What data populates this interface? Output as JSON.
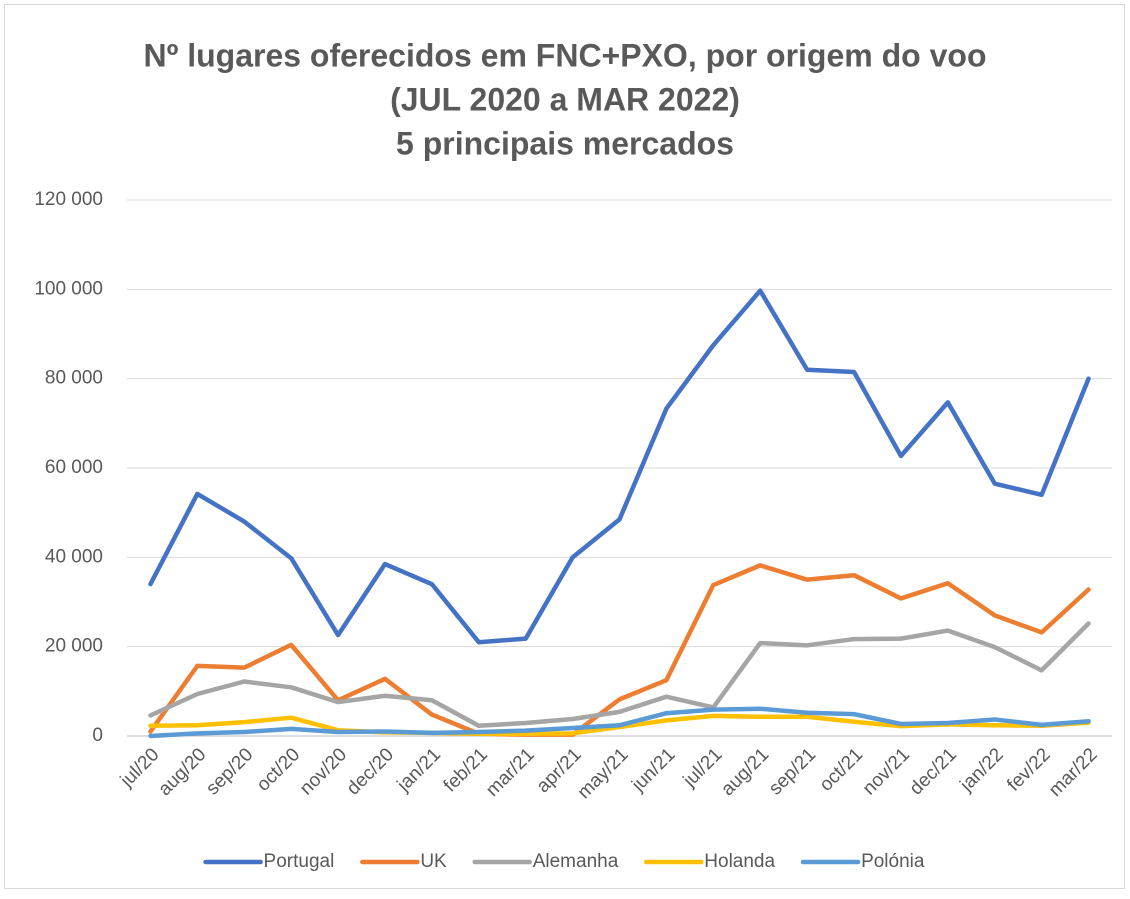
{
  "chart_data": {
    "type": "line",
    "title": [
      "Nº lugares oferecidos em FNC+PXO, por origem do voo",
      "(JUL 2020 a MAR 2022)",
      "5 principais mercados"
    ],
    "categories": [
      "jul/20",
      "aug/20",
      "sep/20",
      "oct/20",
      "nov/20",
      "dec/20",
      "jan/21",
      "feb/21",
      "mar/21",
      "apr/21",
      "may/21",
      "jun/21",
      "jul/21",
      "aug/21",
      "sep/21",
      "oct/21",
      "nov/21",
      "dec/21",
      "jan/22",
      "fev/22",
      "mar/22"
    ],
    "series": [
      {
        "name": "Portugal",
        "color": "#4472c4",
        "values": [
          34000,
          54200,
          48000,
          39800,
          22600,
          38500,
          34000,
          21000,
          21800,
          40000,
          48500,
          73300,
          87500,
          99700,
          82000,
          81500,
          62700,
          74700,
          56500,
          54000,
          80000
        ]
      },
      {
        "name": "UK",
        "color": "#ed7d31",
        "values": [
          1000,
          15700,
          15300,
          20400,
          8000,
          12800,
          4800,
          500,
          300,
          300,
          8200,
          12500,
          33800,
          38200,
          35000,
          36000,
          30800,
          34200,
          27000,
          23200,
          32800
        ]
      },
      {
        "name": "Alemanha",
        "color": "#a5a5a5",
        "values": [
          4600,
          9400,
          12200,
          10900,
          7600,
          9000,
          8000,
          2300,
          2900,
          3800,
          5400,
          8800,
          6400,
          20800,
          20300,
          21700,
          21800,
          23600,
          19900,
          14700,
          25200
        ]
      },
      {
        "name": "Holanda",
        "color": "#ffc000",
        "values": [
          2300,
          2400,
          3100,
          4100,
          1300,
          800,
          700,
          500,
          500,
          600,
          2000,
          3500,
          4500,
          4300,
          4300,
          3200,
          2200,
          2600,
          2400,
          2300,
          3000
        ]
      },
      {
        "name": "Polónia",
        "color": "#5b9bd5",
        "values": [
          0,
          600,
          900,
          1600,
          900,
          1000,
          700,
          900,
          1200,
          1800,
          2400,
          5100,
          5900,
          6100,
          5200,
          4900,
          2700,
          2900,
          3700,
          2500,
          3300
        ]
      }
    ],
    "ylim": [
      0,
      120000
    ],
    "yticks": [
      {
        "value": 0,
        "label": "0"
      },
      {
        "value": 20000,
        "label": "20 000"
      },
      {
        "value": 40000,
        "label": "40 000"
      },
      {
        "value": 60000,
        "label": "60 000"
      },
      {
        "value": 80000,
        "label": "80 000"
      },
      {
        "value": 100000,
        "label": "100 000"
      },
      {
        "value": 120000,
        "label": "120 000"
      }
    ],
    "grid": true,
    "legend": "bottom"
  }
}
